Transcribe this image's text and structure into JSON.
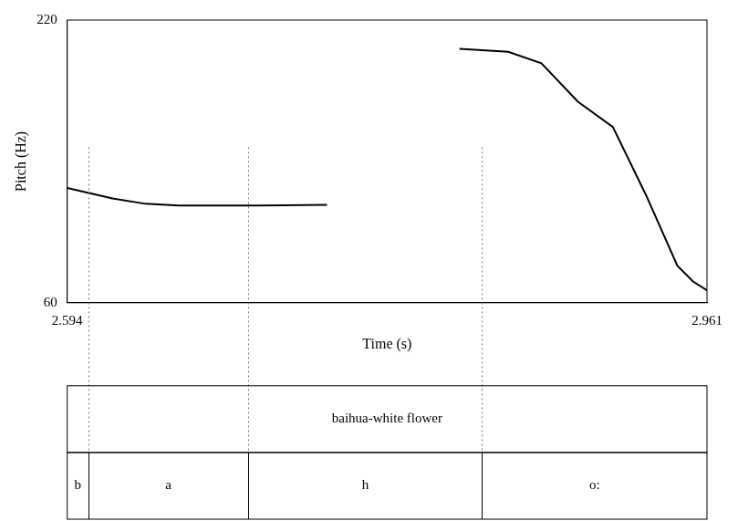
{
  "chart_data": {
    "type": "line",
    "x_label": "Time (s)",
    "y_label": "Pitch (Hz)",
    "x": [
      2.594,
      2.62,
      2.639,
      2.658,
      2.704,
      2.743,
      2.78,
      2.819,
      2.847,
      2.866,
      2.887,
      2.907,
      2.926,
      2.944,
      2.953,
      2.961
    ],
    "values": [
      125,
      119,
      116,
      115,
      115,
      115.4,
      null,
      203.7,
      202,
      195.6,
      173.8,
      159.5,
      121,
      81,
      72,
      67
    ],
    "color": "#000000",
    "xlim": [
      2.594,
      2.961
    ],
    "xticks": [
      2.594,
      2.961
    ],
    "ylim": [
      60,
      220
    ],
    "yticks": [
      60,
      220
    ],
    "grid": false,
    "annotation": {
      "tiers": [
        {
          "intervals": [
            {
              "text": "baihua-white flower",
              "start": 2.594,
              "end": 2.961
            }
          ]
        },
        {
          "intervals": [
            {
              "text": "b",
              "start": 2.594,
              "end": 2.606
            },
            {
              "text": "a",
              "start": 2.606,
              "end": 2.698
            },
            {
              "text": "h",
              "start": 2.698,
              "end": 2.832
            },
            {
              "text": "o:",
              "start": 2.832,
              "end": 2.961
            }
          ]
        }
      ]
    }
  }
}
